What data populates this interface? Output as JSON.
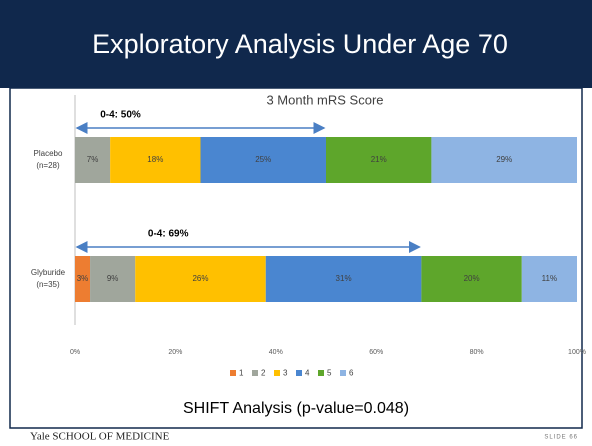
{
  "slide_title": "Exploratory Analysis Under Age 70",
  "chart_data": {
    "type": "stacked_bar_horizontal",
    "title": "3 Month mRS Score",
    "categories": [
      "Placebo",
      "Glyburide"
    ],
    "category_notes": [
      "(n=28)",
      "(n=35)"
    ],
    "series": [
      {
        "name": "1",
        "color": "#ed7d31",
        "values": [
          0,
          3
        ],
        "value_labels": [
          null,
          "3%"
        ]
      },
      {
        "name": "2",
        "color": "#a0a69c",
        "values": [
          7,
          9
        ],
        "value_labels": [
          "7%",
          "9%"
        ]
      },
      {
        "name": "3",
        "color": "#ffc000",
        "values": [
          18,
          26
        ],
        "value_labels": [
          "18%",
          "26%"
        ]
      },
      {
        "name": "4",
        "color": "#4a86d0",
        "values": [
          25,
          31
        ],
        "value_labels": [
          "25%",
          "31%"
        ]
      },
      {
        "name": "5",
        "color": "#5ea62b",
        "values": [
          21,
          20
        ],
        "value_labels": [
          "21%",
          "20%"
        ]
      },
      {
        "name": "6",
        "color": "#8eb4e3",
        "values": [
          29,
          11
        ],
        "value_labels": [
          "29%",
          "11%"
        ]
      }
    ],
    "xlim": [
      0,
      100
    ],
    "xticks": [
      {
        "value": 0,
        "label": "0%"
      },
      {
        "value": 20,
        "label": "20%"
      },
      {
        "value": 40,
        "label": "40%"
      },
      {
        "value": 60,
        "label": "60%"
      },
      {
        "value": 80,
        "label": "80%"
      },
      {
        "value": 100,
        "label": "100%"
      }
    ],
    "annotations": [
      {
        "text": "0-4: 50%",
        "from": 0,
        "to": 50
      },
      {
        "text": "0-4: 69%",
        "from": 0,
        "to": 69
      }
    ],
    "legend": "bottom"
  },
  "caption": "SHIFT Analysis (p-value=0.048)",
  "footer": {
    "school": "Yale SCHOOL OF MEDICINE",
    "slide": "SLIDE 66"
  }
}
